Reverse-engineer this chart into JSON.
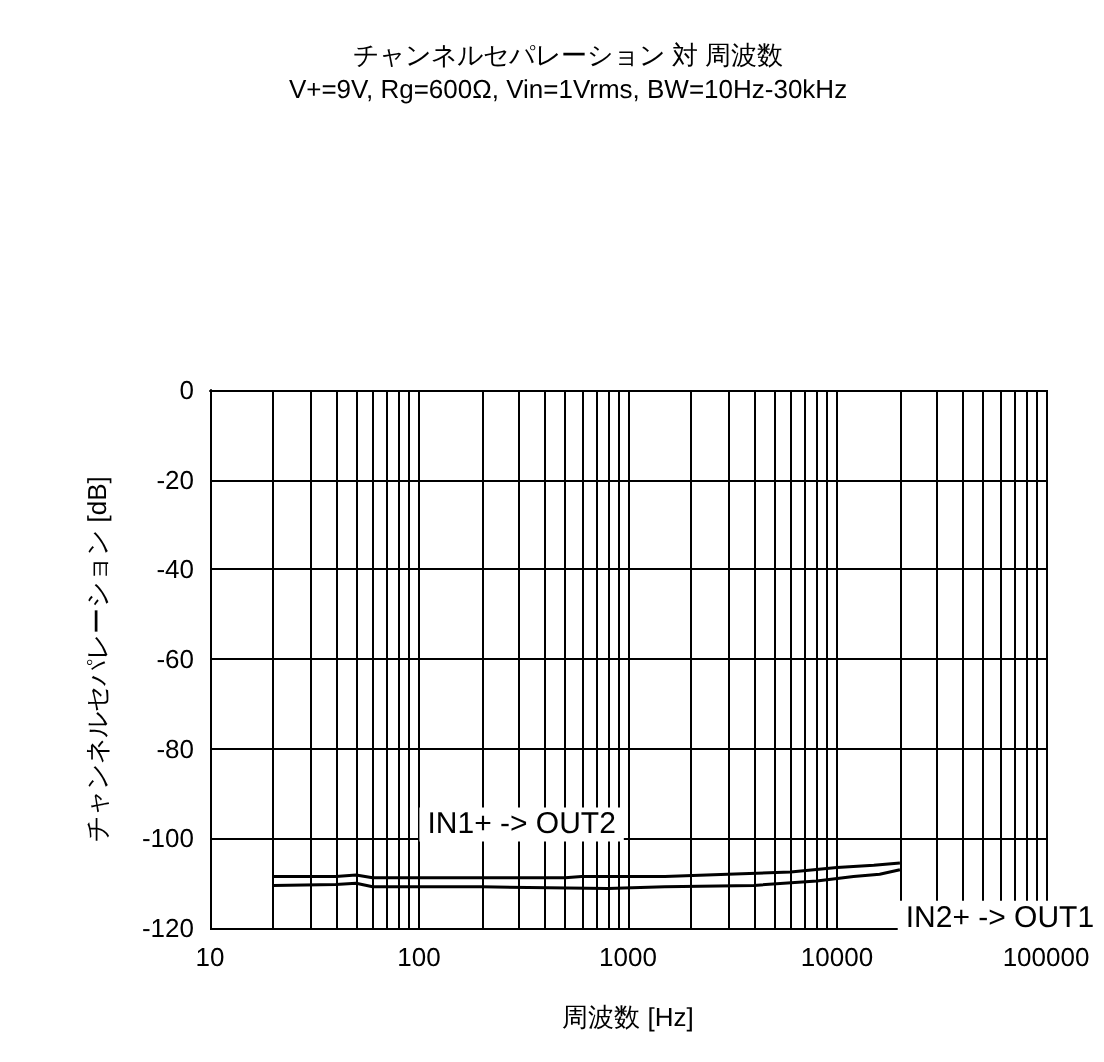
{
  "chart_data": {
    "type": "line",
    "title": "チャンネルセパレーション 対 周波数",
    "subtitle": "V+=9V, Rg=600Ω, Vin=1Vrms, BW=10Hz-30kHz",
    "xlabel": "周波数 [Hz]",
    "ylabel": "チャンネルセパレーション [dB]",
    "log": "x",
    "xlim": [
      10,
      100000
    ],
    "xticks": [
      10,
      100,
      1000,
      10000,
      100000
    ],
    "ylim": [
      -120,
      0
    ],
    "yticks": [
      -120,
      -100,
      -80,
      -60,
      -40,
      -20,
      0
    ],
    "grid": true,
    "marker": "none",
    "series": [
      {
        "name": "IN1+ -> OUT2",
        "color": "#000000",
        "x": [
          20,
          40,
          50,
          60,
          100,
          300,
          500,
          600,
          1500,
          3000,
          6000,
          10000,
          15000,
          20000
        ],
        "values": [
          -108.5,
          -108.5,
          -108.2,
          -108.8,
          -108.8,
          -108.8,
          -108.8,
          -108.5,
          -108.5,
          -108,
          -107.5,
          -106.5,
          -106,
          -105.5
        ]
      },
      {
        "name": "IN2+ -> OUT1",
        "color": "#000000",
        "x": [
          20,
          40,
          50,
          60,
          200,
          800,
          1500,
          4000,
          8000,
          12000,
          16000,
          20000
        ],
        "values": [
          -110.5,
          -110.3,
          -110,
          -110.8,
          -110.8,
          -111.2,
          -110.8,
          -110.5,
          -109.5,
          -108.5,
          -108,
          -107
        ]
      }
    ]
  }
}
